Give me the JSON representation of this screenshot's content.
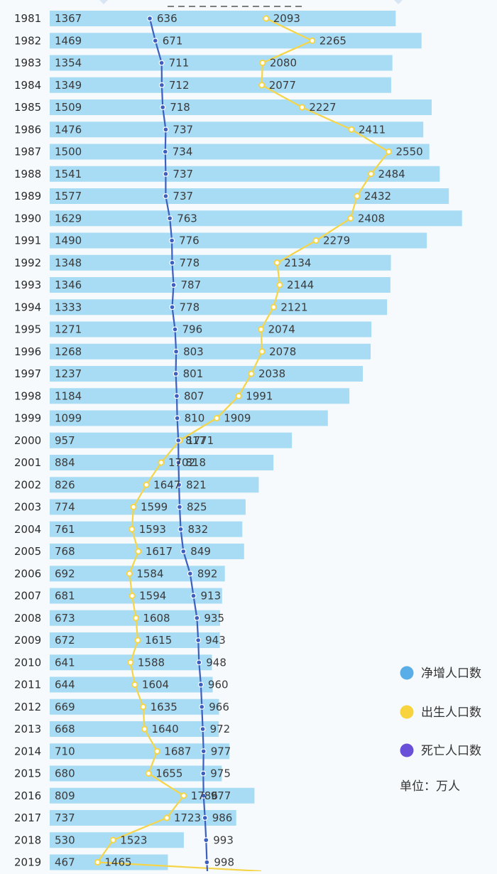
{
  "chart_data": {
    "type": "bar",
    "categories": [
      "1981",
      "1982",
      "1983",
      "1984",
      "1985",
      "1986",
      "1987",
      "1988",
      "1989",
      "1990",
      "1991",
      "1992",
      "1993",
      "1994",
      "1995",
      "1996",
      "1997",
      "1998",
      "1999",
      "2000",
      "2001",
      "2002",
      "2003",
      "2004",
      "2005",
      "2006",
      "2007",
      "2008",
      "2009",
      "2010",
      "2011",
      "2012",
      "2013",
      "2014",
      "2015",
      "2016",
      "2017",
      "2018",
      "2019"
    ],
    "series": [
      {
        "name": "净增人口数",
        "type": "bar",
        "color": "#a8dcf5",
        "values": [
          1367,
          1469,
          1354,
          1349,
          1509,
          1476,
          1500,
          1541,
          1577,
          1629,
          1490,
          1348,
          1346,
          1333,
          1271,
          1268,
          1237,
          1184,
          1099,
          957,
          884,
          826,
          774,
          761,
          768,
          692,
          681,
          673,
          672,
          641,
          644,
          669,
          668,
          710,
          680,
          809,
          737,
          530,
          467
        ]
      },
      {
        "name": "出生人口数",
        "type": "line",
        "color": "#f5d547",
        "values": [
          2093,
          2265,
          2080,
          2077,
          2227,
          2411,
          2550,
          2484,
          2432,
          2408,
          2279,
          2134,
          2144,
          2121,
          2074,
          2078,
          2038,
          1991,
          1909,
          1771,
          1702,
          1647,
          1599,
          1593,
          1617,
          1584,
          1594,
          1608,
          1615,
          1588,
          1604,
          1635,
          1640,
          1687,
          1655,
          1786,
          1723,
          1523,
          1465
        ]
      },
      {
        "name": "死亡人口数",
        "type": "line",
        "color": "#3d5fbf",
        "values": [
          636,
          671,
          711,
          712,
          718,
          737,
          734,
          737,
          737,
          763,
          776,
          778,
          787,
          778,
          796,
          803,
          801,
          807,
          810,
          817,
          818,
          821,
          825,
          832,
          849,
          892,
          913,
          935,
          943,
          948,
          960,
          966,
          972,
          977,
          975,
          977,
          986,
          993,
          998
        ]
      }
    ],
    "legend": {
      "placement": "right",
      "items": [
        {
          "label": "净增人口数",
          "color": "#5aaee8"
        },
        {
          "label": "出生人口数",
          "color": "#f7d43e"
        },
        {
          "label": "死亡人口数",
          "color": "#6a4fd8"
        }
      ]
    },
    "unit_note": "单位：万人",
    "orientation": "horizontal",
    "grid": false,
    "colors": {
      "background": "#f6fafd",
      "bar": "#a8dcf5",
      "birth_line": "#f5d547",
      "death_line": "#3d5fbf",
      "marker_fill": "#ffffff"
    }
  }
}
